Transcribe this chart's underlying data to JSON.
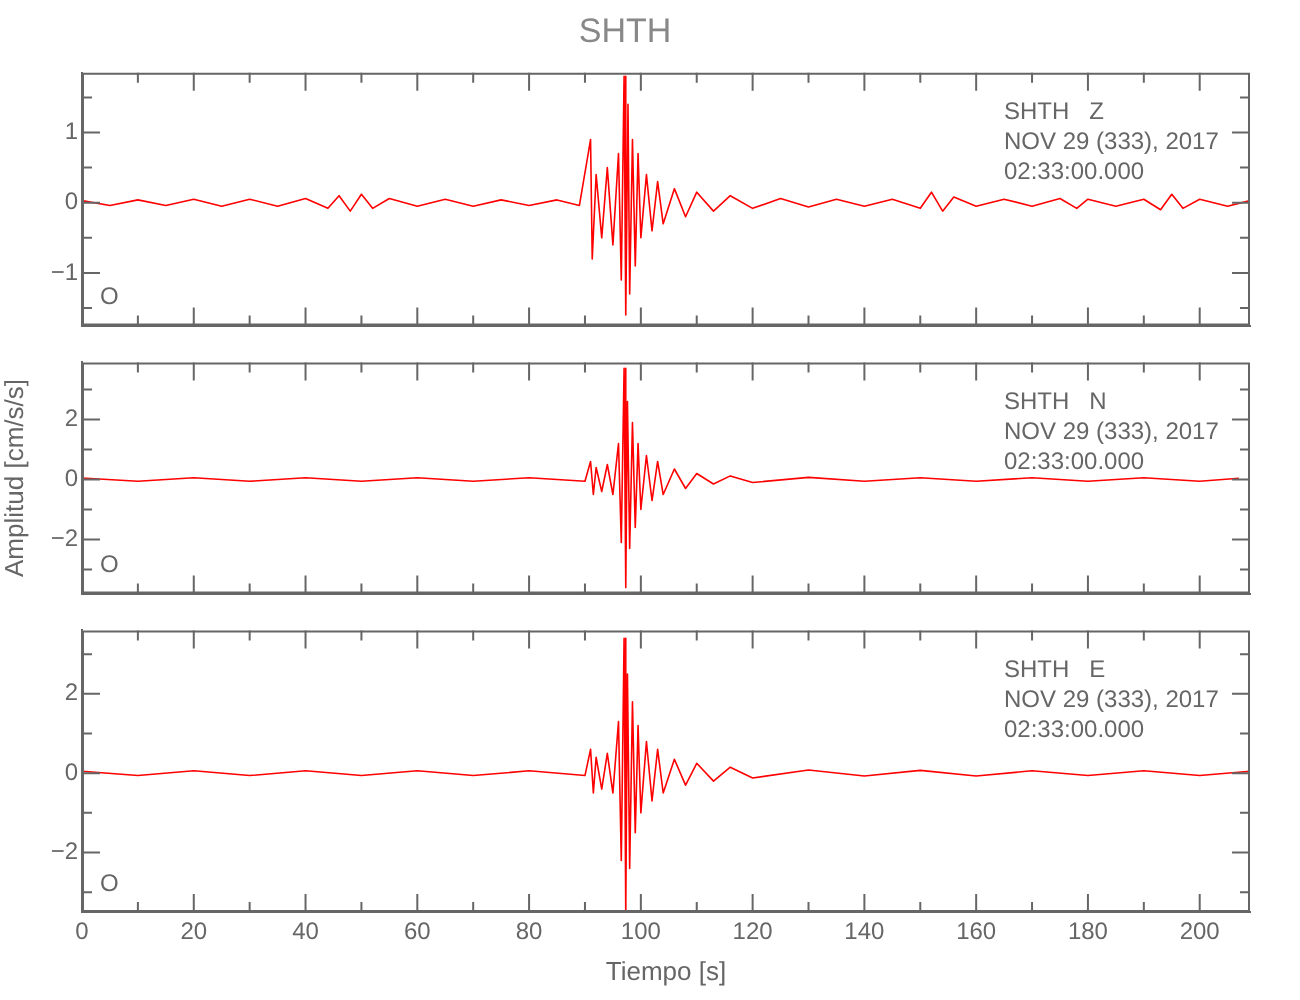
{
  "chart_data": [
    {
      "type": "line",
      "title": "SHTH",
      "annotations": [
        "SHTH   Z",
        "NOV 29 (333), 2017",
        "02:33:00.000",
        "O"
      ],
      "marker": "none",
      "tick_labels": "y",
      "xlim": [
        0,
        209
      ],
      "xticks": [
        0,
        {
          "value": 10,
          "label": null
        },
        20,
        {
          "value": 30,
          "label": null
        },
        40,
        {
          "value": 50,
          "label": null
        },
        60,
        {
          "value": 70,
          "label": null
        },
        80,
        {
          "value": 90,
          "label": null
        },
        100,
        {
          "value": 110,
          "label": null
        },
        120,
        {
          "value": 130,
          "label": null
        },
        140,
        {
          "value": 150,
          "label": null
        },
        160,
        {
          "value": 170,
          "label": null
        },
        180,
        {
          "value": 190,
          "label": null
        },
        200
      ],
      "ylim": [
        -1.75,
        1.85
      ],
      "yticks": [
        {
          "value": -1.5,
          "label": null
        },
        -1,
        {
          "value": -0.5,
          "label": null
        },
        0,
        {
          "value": 0.5,
          "label": null
        },
        1,
        {
          "value": 1.5,
          "label": null
        }
      ],
      "series": [
        {
          "color": "#ff0000",
          "x": [
            0,
            5,
            10,
            15,
            20,
            25,
            30,
            35,
            40,
            44,
            46,
            48,
            50,
            52,
            55,
            60,
            65,
            70,
            75,
            80,
            85,
            89,
            91,
            91.3,
            92,
            93,
            94,
            95,
            96,
            96.5,
            97,
            97.3,
            97.7,
            98,
            98.5,
            99,
            99.5,
            100,
            101,
            102,
            103,
            104,
            106,
            108,
            110,
            113,
            116,
            120,
            125,
            130,
            135,
            140,
            145,
            150,
            152,
            154,
            156,
            160,
            165,
            170,
            175,
            178,
            180,
            185,
            190,
            193,
            195,
            197,
            200,
            205,
            209
          ],
          "values": [
            0.03,
            -0.04,
            0.04,
            -0.04,
            0.05,
            -0.05,
            0.05,
            -0.05,
            0.06,
            -0.08,
            0.1,
            -0.12,
            0.12,
            -0.08,
            0.06,
            -0.05,
            0.05,
            -0.05,
            0.04,
            -0.04,
            0.04,
            -0.04,
            0.9,
            -0.8,
            0.4,
            -0.5,
            0.5,
            -0.6,
            0.7,
            -1.1,
            1.8,
            -1.6,
            1.4,
            -1.3,
            0.9,
            -0.9,
            0.7,
            -0.5,
            0.4,
            -0.4,
            0.3,
            -0.3,
            0.2,
            -0.2,
            0.15,
            -0.12,
            0.1,
            -0.08,
            0.06,
            -0.06,
            0.05,
            -0.05,
            0.05,
            -0.08,
            0.15,
            -0.12,
            0.08,
            -0.05,
            0.05,
            -0.05,
            0.06,
            -0.08,
            0.05,
            -0.05,
            0.05,
            -0.1,
            0.12,
            -0.08,
            0.05,
            -0.05,
            0.03
          ]
        }
      ]
    },
    {
      "type": "line",
      "ylabel": "Amplitud [cm/s/s]",
      "annotations": [
        "SHTH   N",
        "NOV 29 (333), 2017",
        "02:33:00.000",
        "O"
      ],
      "marker": "none",
      "tick_labels": "y",
      "xlim": [
        0,
        209
      ],
      "xticks": [
        0,
        {
          "value": 10,
          "label": null
        },
        20,
        {
          "value": 30,
          "label": null
        },
        40,
        {
          "value": 50,
          "label": null
        },
        60,
        {
          "value": 70,
          "label": null
        },
        80,
        {
          "value": 90,
          "label": null
        },
        100,
        {
          "value": 110,
          "label": null
        },
        120,
        {
          "value": 130,
          "label": null
        },
        140,
        {
          "value": 150,
          "label": null
        },
        160,
        {
          "value": 170,
          "label": null
        },
        180,
        {
          "value": 190,
          "label": null
        },
        200
      ],
      "ylim": [
        -3.8,
        3.9
      ],
      "yticks": [
        {
          "value": -3,
          "label": null
        },
        -2,
        {
          "value": -1,
          "label": null
        },
        0,
        {
          "value": 1,
          "label": null
        },
        2,
        {
          "value": 3,
          "label": null
        }
      ],
      "series": [
        {
          "color": "#ff0000",
          "x": [
            0,
            10,
            20,
            30,
            40,
            50,
            60,
            70,
            80,
            90,
            91,
            91.5,
            92,
            93,
            94,
            95,
            96,
            96.5,
            97,
            97.3,
            97.6,
            98,
            98.5,
            99,
            99.5,
            100,
            101,
            102,
            103,
            104,
            106,
            108,
            110,
            113,
            116,
            120,
            130,
            140,
            150,
            160,
            170,
            180,
            190,
            200,
            207
          ],
          "values": [
            0.05,
            -0.06,
            0.06,
            -0.06,
            0.06,
            -0.06,
            0.06,
            -0.06,
            0.06,
            -0.06,
            0.6,
            -0.5,
            0.4,
            -0.4,
            0.5,
            -0.5,
            1.2,
            -2.1,
            3.7,
            -3.6,
            2.6,
            -2.3,
            1.9,
            -1.6,
            1.2,
            -1,
            0.8,
            -0.7,
            0.6,
            -0.5,
            0.35,
            -0.3,
            0.2,
            -0.15,
            0.12,
            -0.1,
            0.07,
            -0.06,
            0.06,
            -0.06,
            0.06,
            -0.06,
            0.06,
            -0.06,
            0.04
          ]
        }
      ]
    },
    {
      "type": "line",
      "xlabel": "Tiempo [s]",
      "annotations": [
        "SHTH   E",
        "NOV 29 (333), 2017",
        "02:33:00.000",
        "O"
      ],
      "marker": "none",
      "xlim": [
        0,
        209
      ],
      "xticks": [
        0,
        {
          "value": 10,
          "label": null
        },
        20,
        {
          "value": 30,
          "label": null
        },
        40,
        {
          "value": 50,
          "label": null
        },
        60,
        {
          "value": 70,
          "label": null
        },
        80,
        {
          "value": 90,
          "label": null
        },
        100,
        {
          "value": 110,
          "label": null
        },
        120,
        {
          "value": 130,
          "label": null
        },
        140,
        {
          "value": 150,
          "label": null
        },
        160,
        {
          "value": 170,
          "label": null
        },
        180,
        {
          "value": 190,
          "label": null
        },
        200
      ],
      "ylim": [
        -3.5,
        3.6
      ],
      "yticks": [
        {
          "value": -3,
          "label": null
        },
        -2,
        {
          "value": -1,
          "label": null
        },
        0,
        {
          "value": 1,
          "label": null
        },
        2,
        {
          "value": 3,
          "label": null
        }
      ],
      "series": [
        {
          "color": "#ff0000",
          "x": [
            0,
            10,
            20,
            30,
            40,
            50,
            60,
            70,
            80,
            90,
            91,
            91.5,
            92,
            93,
            94,
            95,
            96,
            96.5,
            97,
            97.3,
            97.6,
            98,
            98.5,
            99,
            99.5,
            100,
            101,
            102,
            103,
            104,
            106,
            108,
            110,
            113,
            116,
            120,
            130,
            140,
            150,
            160,
            170,
            180,
            190,
            200,
            209
          ],
          "values": [
            0.05,
            -0.06,
            0.06,
            -0.06,
            0.06,
            -0.06,
            0.06,
            -0.06,
            0.06,
            -0.06,
            0.6,
            -0.5,
            0.4,
            -0.4,
            0.5,
            -0.5,
            1.3,
            -2.2,
            3.4,
            -3.5,
            2.5,
            -2.4,
            1.8,
            -1.5,
            1.2,
            -1,
            0.8,
            -0.7,
            0.6,
            -0.5,
            0.35,
            -0.3,
            0.25,
            -0.2,
            0.15,
            -0.12,
            0.08,
            -0.07,
            0.07,
            -0.07,
            0.06,
            -0.06,
            0.06,
            -0.06,
            0.05
          ]
        }
      ]
    }
  ]
}
